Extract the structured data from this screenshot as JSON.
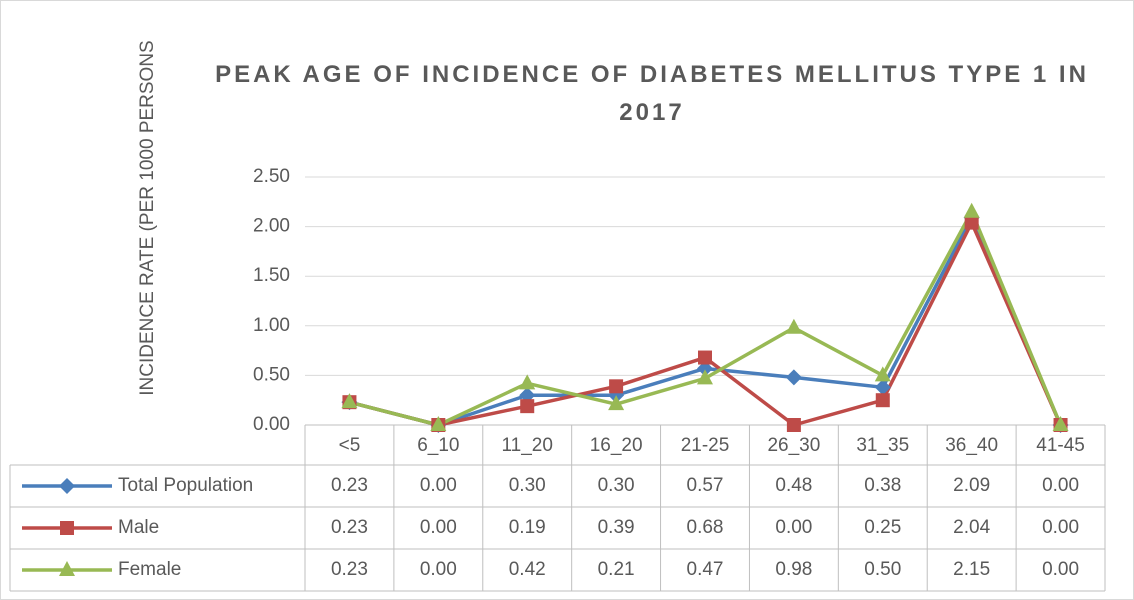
{
  "chart_data": {
    "type": "line",
    "title": "PEAK AGE OF INCIDENCE OF DIABETES MELLITUS TYPE 1 IN 2017",
    "y_label": "INCIDENCE RATE (PER 1000 PERSONS",
    "categories": [
      "<5",
      "6_10",
      "11_20",
      "16_20",
      "21-25",
      "26_30",
      "31_35",
      "36_40",
      "41-45"
    ],
    "series": [
      {
        "name": "Total Population",
        "color": "#4a7ebb",
        "marker": "diamond",
        "values": [
          0.23,
          0,
          0.3,
          0.3,
          0.57,
          0.48,
          0.38,
          2.09,
          0
        ],
        "value_labels": [
          "0.23",
          "0.00",
          "0.30",
          "0.30",
          "0.57",
          "0.48",
          "0.38",
          "2.09",
          "0.00"
        ]
      },
      {
        "name": "Male",
        "color": "#be4b48",
        "marker": "square",
        "values": [
          0.23,
          0,
          0.19,
          0.39,
          0.68,
          0,
          0.25,
          2.04,
          0
        ],
        "value_labels": [
          "0.23",
          "0.00",
          "0.19",
          "0.39",
          "0.68",
          "0.00",
          "0.25",
          "2.04",
          "0.00"
        ]
      },
      {
        "name": "Female",
        "color": "#98b954",
        "marker": "triangle",
        "values": [
          0.23,
          0,
          0.42,
          0.21,
          0.47,
          0.98,
          0.5,
          2.15,
          0
        ],
        "value_labels": [
          "0.23",
          "0.00",
          "0.42",
          "0.21",
          "0.47",
          "0.98",
          "0.50",
          "2.15",
          "0.00"
        ]
      }
    ],
    "ylim": [
      0,
      2.5
    ],
    "yticks": [
      {
        "value": 0,
        "label": "0.00"
      },
      {
        "value": 0.5,
        "label": "0.50"
      },
      {
        "value": 1,
        "label": "1.00"
      },
      {
        "value": 1.5,
        "label": "1.50"
      },
      {
        "value": 2,
        "label": "2.00"
      },
      {
        "value": 2.5,
        "label": "2.50"
      }
    ],
    "grid": true
  }
}
